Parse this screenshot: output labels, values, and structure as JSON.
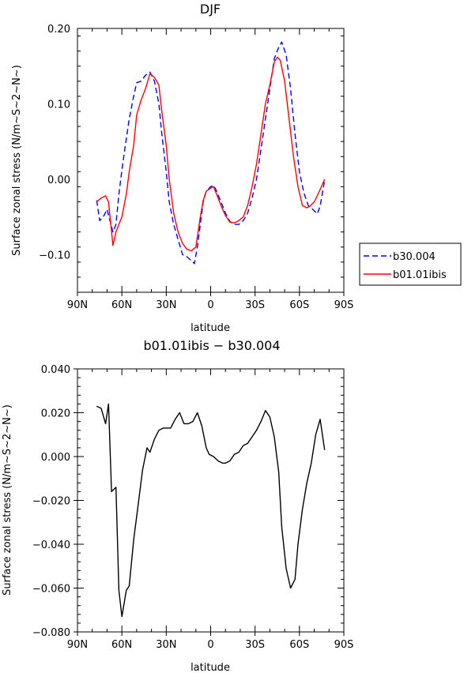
{
  "chart_data": [
    {
      "type": "line",
      "title": "DJF",
      "xlabel": "latitude",
      "ylabel": "Surface zonal stress (N/m~S~2~N~)",
      "x_tick_labels": [
        "90N",
        "60N",
        "30N",
        "0",
        "30S",
        "60S",
        "90S"
      ],
      "y_tick_labels": [
        "0.20",
        "0.10",
        "0.00",
        "−0.10"
      ],
      "y_tick_values": [
        0.2,
        0.1,
        0.0,
        -0.1
      ],
      "xlim": [
        90,
        -90
      ],
      "ylim": [
        -0.15,
        0.2
      ],
      "grid": false,
      "legend_position": "right",
      "series": [
        {
          "name": "b30.004",
          "color": "#0000ff",
          "dash": "dashed",
          "points": [
            [
              77,
              -0.028
            ],
            [
              75,
              -0.055
            ],
            [
              72,
              -0.048
            ],
            [
              70,
              -0.04
            ],
            [
              66,
              -0.07
            ],
            [
              64,
              -0.06
            ],
            [
              62,
              -0.02
            ],
            [
              60,
              0.012
            ],
            [
              58,
              0.04
            ],
            [
              55,
              0.08
            ],
            [
              52,
              0.11
            ],
            [
              50,
              0.128
            ],
            [
              47,
              0.13
            ],
            [
              44,
              0.138
            ],
            [
              41,
              0.142
            ],
            [
              38,
              0.13
            ],
            [
              35,
              0.1
            ],
            [
              33,
              0.06
            ],
            [
              30,
              0.01
            ],
            [
              28,
              -0.03
            ],
            [
              25,
              -0.06
            ],
            [
              22,
              -0.08
            ],
            [
              19,
              -0.1
            ],
            [
              16,
              -0.103
            ],
            [
              13,
              -0.108
            ],
            [
              11,
              -0.112
            ],
            [
              9,
              -0.09
            ],
            [
              7,
              -0.06
            ],
            [
              5,
              -0.03
            ],
            [
              3,
              -0.016
            ],
            [
              0,
              -0.01
            ],
            [
              -2,
              -0.008
            ],
            [
              -4,
              -0.016
            ],
            [
              -7,
              -0.03
            ],
            [
              -10,
              -0.045
            ],
            [
              -13,
              -0.056
            ],
            [
              -16,
              -0.06
            ],
            [
              -19,
              -0.06
            ],
            [
              -22,
              -0.055
            ],
            [
              -25,
              -0.045
            ],
            [
              -28,
              -0.025
            ],
            [
              -31,
              0.0
            ],
            [
              -34,
              0.04
            ],
            [
              -37,
              0.08
            ],
            [
              -40,
              0.12
            ],
            [
              -43,
              0.16
            ],
            [
              -46,
              0.175
            ],
            [
              -48,
              0.182
            ],
            [
              -51,
              0.165
            ],
            [
              -54,
              0.12
            ],
            [
              -57,
              0.06
            ],
            [
              -60,
              0.01
            ],
            [
              -63,
              -0.018
            ],
            [
              -66,
              -0.035
            ],
            [
              -69,
              -0.04
            ],
            [
              -72,
              -0.046
            ],
            [
              -74,
              -0.036
            ],
            [
              -77,
              -0.001
            ]
          ]
        },
        {
          "name": "b01.01ibis",
          "color": "#ff0000",
          "dash": "solid",
          "points": [
            [
              77,
              -0.03
            ],
            [
              74,
              -0.025
            ],
            [
              71,
              -0.022
            ],
            [
              69,
              -0.03
            ],
            [
              66,
              -0.088
            ],
            [
              64,
              -0.07
            ],
            [
              62,
              -0.06
            ],
            [
              60,
              -0.05
            ],
            [
              57,
              -0.02
            ],
            [
              55,
              0.01
            ],
            [
              52,
              0.045
            ],
            [
              50,
              0.085
            ],
            [
              47,
              0.105
            ],
            [
              44,
              0.12
            ],
            [
              41,
              0.14
            ],
            [
              38,
              0.135
            ],
            [
              35,
              0.125
            ],
            [
              33,
              0.09
            ],
            [
              30,
              0.045
            ],
            [
              28,
              0.0
            ],
            [
              25,
              -0.045
            ],
            [
              22,
              -0.07
            ],
            [
              19,
              -0.085
            ],
            [
              16,
              -0.093
            ],
            [
              13,
              -0.095
            ],
            [
              10,
              -0.09
            ],
            [
              7,
              -0.05
            ],
            [
              5,
              -0.028
            ],
            [
              3,
              -0.016
            ],
            [
              0,
              -0.012
            ],
            [
              -2,
              -0.01
            ],
            [
              -4,
              -0.02
            ],
            [
              -7,
              -0.035
            ],
            [
              -10,
              -0.048
            ],
            [
              -13,
              -0.057
            ],
            [
              -16,
              -0.058
            ],
            [
              -19,
              -0.055
            ],
            [
              -22,
              -0.05
            ],
            [
              -25,
              -0.035
            ],
            [
              -28,
              -0.01
            ],
            [
              -31,
              0.02
            ],
            [
              -34,
              0.06
            ],
            [
              -37,
              0.1
            ],
            [
              -40,
              0.125
            ],
            [
              -43,
              0.155
            ],
            [
              -45,
              0.162
            ],
            [
              -47,
              0.158
            ],
            [
              -50,
              0.13
            ],
            [
              -53,
              0.08
            ],
            [
              -56,
              0.03
            ],
            [
              -59,
              -0.01
            ],
            [
              -62,
              -0.035
            ],
            [
              -65,
              -0.038
            ],
            [
              -67,
              -0.036
            ],
            [
              -70,
              -0.03
            ],
            [
              -73,
              -0.018
            ],
            [
              -77,
              0.0
            ]
          ]
        }
      ]
    },
    {
      "type": "line",
      "title": "b01.01ibis − b30.004",
      "xlabel": "latitude",
      "ylabel": "Surface zonal stress (N/m~S~2~N~)",
      "x_tick_labels": [
        "90N",
        "60N",
        "30N",
        "0",
        "30S",
        "60S",
        "90S"
      ],
      "y_tick_labels": [
        "0.040",
        "0.020",
        "0.000",
        "−0.020",
        "−0.040",
        "−0.060",
        "−0.080"
      ],
      "y_tick_values": [
        0.04,
        0.02,
        0.0,
        -0.02,
        -0.04,
        -0.06,
        -0.08
      ],
      "xlim": [
        90,
        -90
      ],
      "ylim": [
        -0.08,
        0.04
      ],
      "grid": false,
      "series": [
        {
          "color": "#000000",
          "dash": "solid",
          "points": [
            [
              77,
              0.023
            ],
            [
              74,
              0.022
            ],
            [
              71,
              0.015
            ],
            [
              69,
              0.024
            ],
            [
              67,
              -0.016
            ],
            [
              64,
              -0.014
            ],
            [
              62,
              -0.061
            ],
            [
              60,
              -0.073
            ],
            [
              57,
              -0.061
            ],
            [
              55,
              -0.059
            ],
            [
              52,
              -0.038
            ],
            [
              49,
              -0.022
            ],
            [
              46,
              -0.006
            ],
            [
              43,
              0.004
            ],
            [
              41,
              0.002
            ],
            [
              38,
              0.008
            ],
            [
              35,
              0.012
            ],
            [
              32,
              0.013
            ],
            [
              29,
              0.013
            ],
            [
              27,
              0.013
            ],
            [
              24,
              0.017
            ],
            [
              21,
              0.02
            ],
            [
              18,
              0.015
            ],
            [
              15,
              0.015
            ],
            [
              12,
              0.016
            ],
            [
              9,
              0.02
            ],
            [
              6,
              0.014
            ],
            [
              3,
              0.004
            ],
            [
              1,
              0.001
            ],
            [
              -2,
              0.0
            ],
            [
              -5,
              -0.002
            ],
            [
              -8,
              -0.003
            ],
            [
              -10,
              -0.003
            ],
            [
              -13,
              -0.002
            ],
            [
              -16,
              0.001
            ],
            [
              -19,
              0.002
            ],
            [
              -22,
              0.005
            ],
            [
              -25,
              0.006
            ],
            [
              -28,
              0.009
            ],
            [
              -31,
              0.012
            ],
            [
              -34,
              0.016
            ],
            [
              -37,
              0.021
            ],
            [
              -40,
              0.018
            ],
            [
              -43,
              0.009
            ],
            [
              -46,
              -0.007
            ],
            [
              -48,
              -0.032
            ],
            [
              -51,
              -0.051
            ],
            [
              -54,
              -0.06
            ],
            [
              -57,
              -0.056
            ],
            [
              -59,
              -0.04
            ],
            [
              -62,
              -0.024
            ],
            [
              -65,
              -0.012
            ],
            [
              -68,
              -0.003
            ],
            [
              -71,
              0.01
            ],
            [
              -74,
              0.017
            ],
            [
              -77,
              0.003
            ]
          ]
        }
      ]
    }
  ]
}
